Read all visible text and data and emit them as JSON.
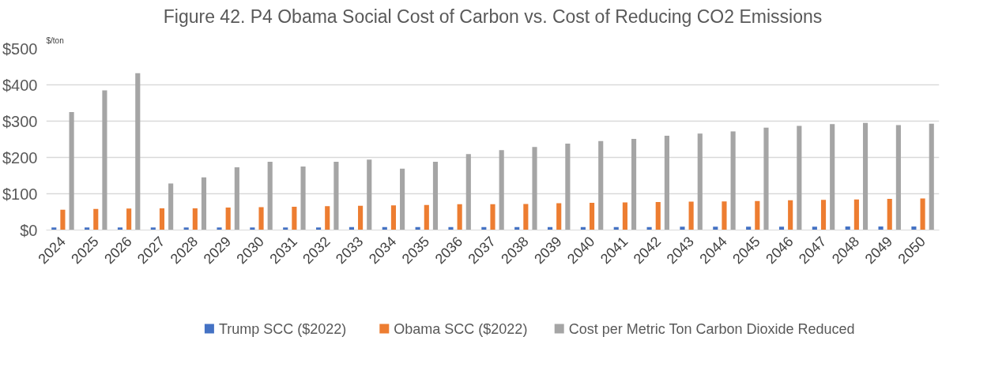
{
  "chart_data": {
    "type": "bar",
    "title": "Figure 42. P4 Obama Social Cost of Carbon vs. Cost of Reducing CO2 Emissions",
    "ylabel": "$/ton",
    "categories": [
      "2024",
      "2025",
      "2026",
      "2027",
      "2028",
      "2029",
      "2030",
      "2031",
      "2032",
      "2033",
      "2034",
      "2035",
      "2036",
      "2037",
      "2038",
      "2039",
      "2040",
      "2041",
      "2042",
      "2043",
      "2044",
      "2045",
      "2046",
      "2047",
      "2048",
      "2049",
      "2050"
    ],
    "series": [
      {
        "name": "Trump SCC ($2022)",
        "color": "#4472c4",
        "values": [
          7,
          7,
          7,
          7,
          7,
          7,
          7,
          7,
          7,
          8,
          8,
          8,
          8,
          8,
          8,
          8,
          8,
          8,
          8,
          9,
          9,
          9,
          9,
          9,
          10,
          10,
          10
        ]
      },
      {
        "name": "Obama SCC ($2022)",
        "color": "#ed7d31",
        "values": [
          56,
          58,
          59,
          60,
          60,
          62,
          63,
          64,
          66,
          67,
          68,
          69,
          71,
          71,
          72,
          74,
          75,
          76,
          77,
          78,
          79,
          80,
          82,
          83,
          84,
          86,
          87
        ]
      },
      {
        "name": "Cost per Metric Ton Carbon Dioxide Reduced",
        "color": "#a5a5a5",
        "values": [
          325,
          385,
          432,
          128,
          145,
          173,
          188,
          175,
          188,
          194,
          169,
          188,
          209,
          220,
          229,
          238,
          245,
          251,
          260,
          266,
          272,
          282,
          287,
          292,
          295,
          289,
          293
        ]
      }
    ],
    "ylim": [
      0,
      500
    ],
    "yticks": [
      {
        "value": 0,
        "label": "$0"
      },
      {
        "value": 100,
        "label": "$100"
      },
      {
        "value": 200,
        "label": "$200"
      },
      {
        "value": 300,
        "label": "$300"
      },
      {
        "value": 400,
        "label": "$400"
      },
      {
        "value": 500,
        "label": "$500"
      }
    ],
    "grid": "y",
    "legend": "bottom"
  }
}
